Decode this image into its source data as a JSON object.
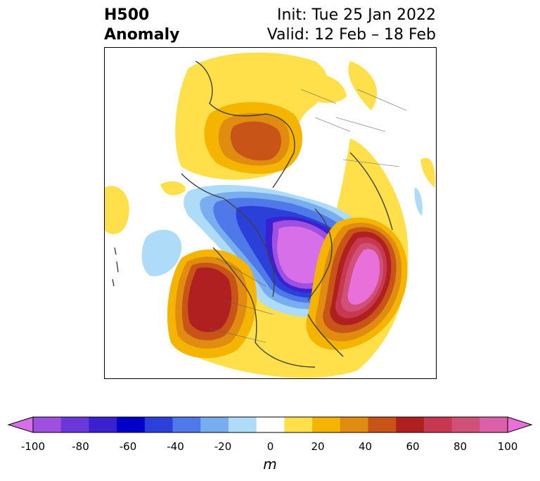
{
  "title": {
    "left_line1": "H500",
    "left_line2": "Anomaly",
    "right_line1": "Init: Tue 25 Jan 2022",
    "right_line2": "Valid: 12 Feb – 18 Feb"
  },
  "colorbar": {
    "ticks": [
      "-100",
      "-80",
      "-60",
      "-40",
      "-20",
      "0",
      "20",
      "40",
      "60",
      "80",
      "100"
    ],
    "unit": "m",
    "levels": [
      -100,
      -90,
      -80,
      -70,
      -60,
      -50,
      -40,
      -30,
      -20,
      -10,
      10,
      20,
      30,
      40,
      50,
      60,
      70,
      80,
      90,
      100
    ],
    "colors": [
      "#d66fe8",
      "#a050e0",
      "#6a38d8",
      "#3a20d0",
      "#0000c8",
      "#2a40d8",
      "#4f78e8",
      "#78aef0",
      "#aedcf8",
      "#ffffff",
      "#ffe04a",
      "#f5b400",
      "#e08c10",
      "#c85418",
      "#b02020",
      "#c83850",
      "#d05078",
      "#dc60a8",
      "#e870d8"
    ]
  }
}
